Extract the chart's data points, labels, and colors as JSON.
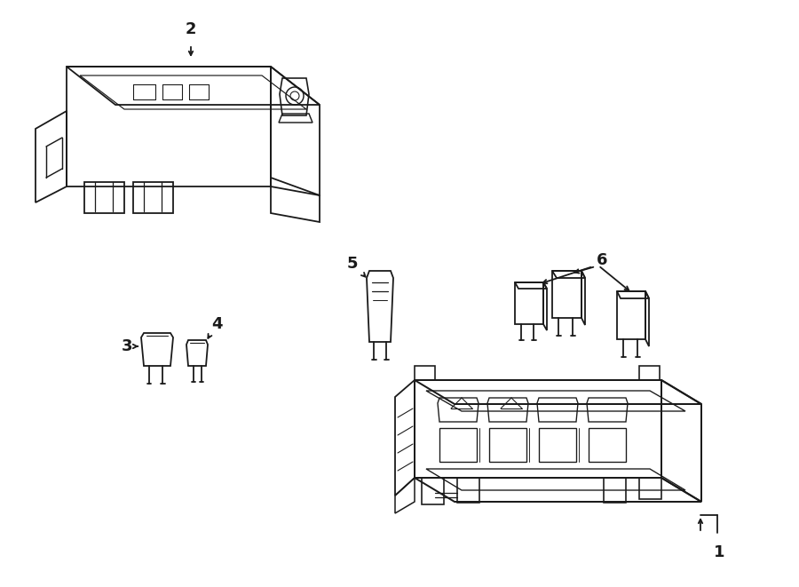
{
  "bg_color": "#ffffff",
  "line_color": "#1a1a1a",
  "lw": 1.3,
  "fig_width": 9.0,
  "fig_height": 6.61
}
